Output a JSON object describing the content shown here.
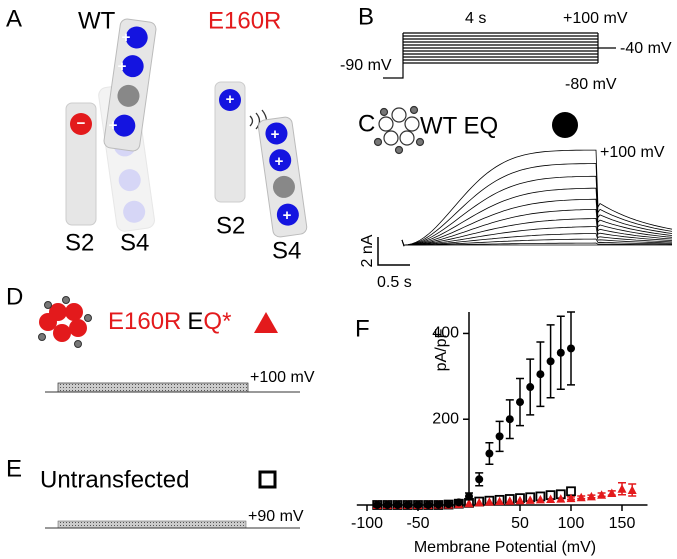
{
  "panels": {
    "A": {
      "label": "A",
      "wt": "WT",
      "mutant": "E160R",
      "wt_s2": "S2",
      "wt_s4": "S4",
      "mut_s2": "S2",
      "mut_s4": "S4",
      "plus": "+",
      "minus": "−"
    },
    "B": {
      "label": "B",
      "duration": "4 s",
      "top": "+100 mV",
      "holding": "-90 mV",
      "tail_high": "-40 mV",
      "tail_low": "-80 mV"
    },
    "C": {
      "label": "C",
      "construct": "WT EQ",
      "voltage": "+100 mV",
      "scale_y": "2 nA",
      "scale_x": "0.5 s"
    },
    "D": {
      "label": "D",
      "construct_a": "E160R",
      "construct_b": "E",
      "construct_c": "Q*",
      "voltage": "+100 mV"
    },
    "E": {
      "label": "E",
      "construct": "Untransfected",
      "voltage": "+90 mV"
    },
    "F": {
      "label": "F"
    }
  },
  "chart_data": {
    "type": "scatter",
    "x_label": "Membrane Potential (mV)",
    "y_label": "pA/pF",
    "xlim": [
      -110,
      175
    ],
    "ylim": [
      0,
      450
    ],
    "xticks": [
      -100,
      -50,
      50,
      100,
      150
    ],
    "yticks": [
      200,
      400
    ],
    "series": [
      {
        "marker": "square",
        "color": "#000000",
        "x": [
          -90,
          -80,
          -70,
          -60,
          -50,
          -40,
          -30,
          -20,
          -10,
          0,
          10,
          20,
          30,
          40,
          50,
          60,
          70,
          80,
          90,
          100
        ],
        "values": [
          0,
          0,
          0,
          0,
          0,
          0,
          0,
          1,
          3,
          5,
          8,
          10,
          12,
          14,
          16,
          18,
          20,
          23,
          25,
          32
        ]
      },
      {
        "marker": "triangle",
        "color": "#e31a1c",
        "x": [
          -90,
          -80,
          -70,
          -60,
          -50,
          -40,
          -30,
          -20,
          -10,
          0,
          10,
          20,
          30,
          40,
          50,
          60,
          70,
          80,
          90,
          100,
          110,
          120,
          130,
          140,
          150,
          160
        ],
        "values": [
          0,
          0,
          0,
          0,
          0,
          0,
          1,
          1,
          2,
          4,
          6,
          8,
          9,
          10,
          11,
          12,
          13,
          14,
          15,
          16,
          18,
          20,
          24,
          28,
          38,
          35
        ],
        "errors": [
          1,
          1,
          1,
          1,
          1,
          1,
          1,
          1,
          1,
          1,
          2,
          2,
          2,
          2,
          2,
          2,
          2,
          2,
          2,
          3,
          3,
          3,
          4,
          5,
          14,
          14
        ]
      },
      {
        "marker": "circle",
        "color": "#000000",
        "x": [
          -90,
          -80,
          -70,
          -60,
          -50,
          -40,
          -30,
          -20,
          -10,
          0,
          10,
          20,
          30,
          40,
          50,
          60,
          70,
          80,
          90,
          100
        ],
        "values": [
          0,
          0,
          0,
          0,
          0,
          0,
          1,
          2,
          6,
          20,
          60,
          120,
          160,
          200,
          240,
          275,
          305,
          335,
          355,
          365
        ],
        "errors": [
          1,
          1,
          1,
          1,
          1,
          1,
          1,
          2,
          3,
          8,
          15,
          25,
          35,
          45,
          55,
          65,
          75,
          85,
          85,
          85
        ]
      }
    ]
  }
}
